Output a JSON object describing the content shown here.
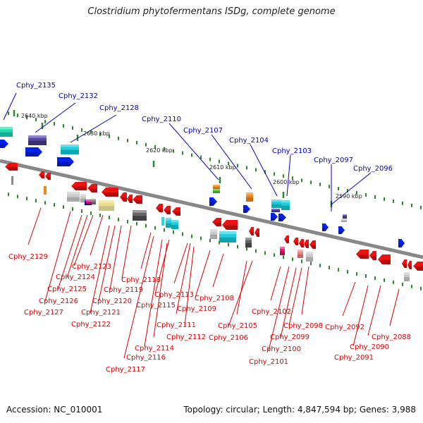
{
  "title": "Clostridium phytofermentans ISDg, complete genome",
  "accession": "Accession: NC_010001",
  "summary": "Topology: circular; Length: 4,847,594 bp; Genes: 3,988",
  "colors": {
    "backbone": "#888888",
    "forward_label": "#0000cc",
    "reverse_label": "#dd0000",
    "tick": "#2a8a2a"
  },
  "ruler": [
    {
      "label": "2640 kbp"
    },
    {
      "label": "2630 kbp"
    },
    {
      "label": "2620 kbp"
    },
    {
      "label": "2610 kbp"
    },
    {
      "label": "2600 kbp"
    },
    {
      "label": "2590 kbp"
    }
  ],
  "forward_genes": [
    {
      "label": "Cphy_2135"
    },
    {
      "label": "Cphy_2132"
    },
    {
      "label": "Cphy_2128"
    },
    {
      "label": "Cphy_2110"
    },
    {
      "label": "Cphy_2107"
    },
    {
      "label": "Cphy_2104"
    },
    {
      "label": "Cphy_2103"
    },
    {
      "label": "Cphy_2097"
    },
    {
      "label": "Cphy_2096"
    }
  ],
  "reverse_genes": [
    {
      "label": "Cphy_2129"
    },
    {
      "label": "Cphy_2123"
    },
    {
      "label": "Cphy_2124"
    },
    {
      "label": "Cphy_2125"
    },
    {
      "label": "Cphy_2126"
    },
    {
      "label": "Cphy_2127"
    },
    {
      "label": "Cphy_2118"
    },
    {
      "label": "Cphy_2119"
    },
    {
      "label": "Cphy_2120"
    },
    {
      "label": "Cphy_2121"
    },
    {
      "label": "Cphy_2122"
    },
    {
      "label": "Cphy_2113"
    },
    {
      "label": "Cphy_2115"
    },
    {
      "label": "Cphy_2108"
    },
    {
      "label": "Cphy_2109"
    },
    {
      "label": "Cphy_2111"
    },
    {
      "label": "Cphy_2112"
    },
    {
      "label": "Cphy_2114"
    },
    {
      "label": "Cphy_2116"
    },
    {
      "label": "Cphy_2117"
    },
    {
      "label": "Cphy_2105"
    },
    {
      "label": "Cphy_2106"
    },
    {
      "label": "Cphy_2102"
    },
    {
      "label": "Cphy_2098"
    },
    {
      "label": "Cphy_2099"
    },
    {
      "label": "Cphy_2100"
    },
    {
      "label": "Cphy_2101"
    },
    {
      "label": "Cphy_2092"
    },
    {
      "label": "Cphy_2088"
    },
    {
      "label": "Cphy_2090"
    },
    {
      "label": "Cphy_2091"
    }
  ]
}
